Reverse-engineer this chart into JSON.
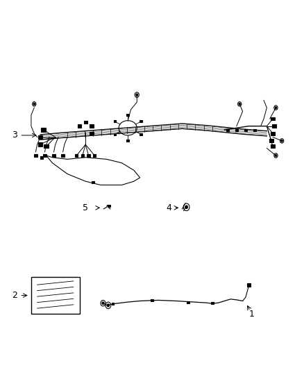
{
  "background_color": "#ffffff",
  "line_color": "#000000",
  "figsize": [
    4.38,
    5.33
  ],
  "dpi": 100,
  "label_fontsize": 9
}
